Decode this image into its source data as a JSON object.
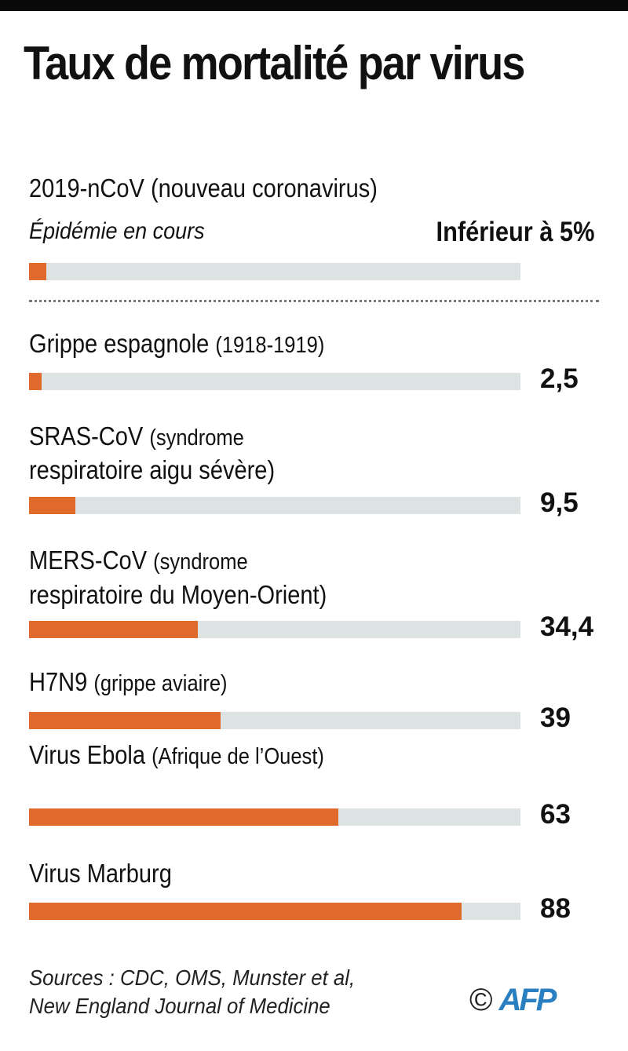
{
  "chart_data": {
    "type": "bar",
    "orientation": "horizontal",
    "title": "Taux de mortalité par virus",
    "xlim": [
      0,
      100
    ],
    "unit": "%",
    "colors": {
      "fill": "#e0692c",
      "track": "#dde3e3"
    },
    "highlight": {
      "name": "2019-nCoV",
      "detail": "(nouveau coronavirus)",
      "note": "Épidémie en cours",
      "value_label": "Inférieur à 5%",
      "fill_value": 3.5
    },
    "categories": [
      {
        "name": "Grippe espagnole",
        "detail": "(1918-1919)",
        "value": 2.5,
        "label": "2,5"
      },
      {
        "name": "SRAS-CoV",
        "detail": "(syndrome",
        "detail2": "respiratoire aigu sévère)",
        "value": 9.5,
        "label": "9,5"
      },
      {
        "name": "MERS-CoV",
        "detail": "(syndrome",
        "detail2": "respiratoire du Moyen-Orient)",
        "value": 34.4,
        "label": "34,4"
      },
      {
        "name": "H7N9",
        "detail": "(grippe aviaire)",
        "value": 39,
        "label": "39"
      },
      {
        "name": "Virus Ebola",
        "detail": "(Afrique de l’Ouest)",
        "value": 63,
        "label": "63"
      },
      {
        "name": "Virus Marburg",
        "detail": "",
        "value": 88,
        "label": "88"
      }
    ]
  },
  "footer": {
    "sources_line1": "Sources :  CDC, OMS, Munster et al,",
    "sources_line2": "New England Journal of Medicine",
    "copyright": "©",
    "logo_text": "AFP",
    "logo_color": "#2a7fc1"
  }
}
